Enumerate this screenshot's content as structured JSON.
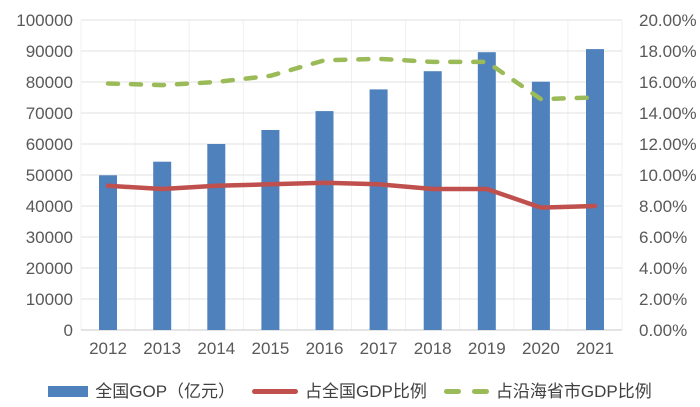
{
  "chart_data": {
    "type": "combo",
    "title": "",
    "categories": [
      "2012",
      "2013",
      "2014",
      "2015",
      "2016",
      "2017",
      "2018",
      "2019",
      "2020",
      "2021"
    ],
    "series": [
      {
        "name": "全国GOP（亿元）",
        "type": "bar",
        "axis": "left",
        "color": "#4F81BD",
        "values": [
          49900,
          54300,
          60000,
          64500,
          70600,
          77600,
          83500,
          89600,
          80100,
          90600
        ]
      },
      {
        "name": "占全国GDP比例",
        "type": "line",
        "style": "solid",
        "axis": "right",
        "color": "#C0504D",
        "values": [
          9.3,
          9.1,
          9.3,
          9.4,
          9.5,
          9.4,
          9.1,
          9.1,
          7.9,
          8.0
        ]
      },
      {
        "name": "占沿海省市GDP比例",
        "type": "line",
        "style": "dashed",
        "axis": "right",
        "color": "#9BBB59",
        "values": [
          15.9,
          15.8,
          16.0,
          16.4,
          17.4,
          17.5,
          17.3,
          17.3,
          14.9,
          15.0
        ]
      }
    ],
    "left_axis": {
      "min": 0,
      "max": 100000,
      "step": 10000,
      "tick_labels": [
        "0",
        "10000",
        "20000",
        "30000",
        "40000",
        "50000",
        "60000",
        "70000",
        "80000",
        "90000",
        "100000"
      ]
    },
    "right_axis": {
      "min": 0,
      "max": 20,
      "step": 2,
      "tick_labels": [
        "0.00%",
        "2.00%",
        "4.00%",
        "6.00%",
        "8.00%",
        "10.00%",
        "12.00%",
        "14.00%",
        "16.00%",
        "18.00%",
        "20.00%"
      ]
    },
    "grid": {
      "horizontal": true,
      "vertical": true
    },
    "legend_position": "bottom",
    "colors": {
      "grid_h": "#E2E2E2",
      "grid_v": "#F0F0F0",
      "baseline": "#C9C9C9",
      "axis_text": "#595959"
    }
  }
}
